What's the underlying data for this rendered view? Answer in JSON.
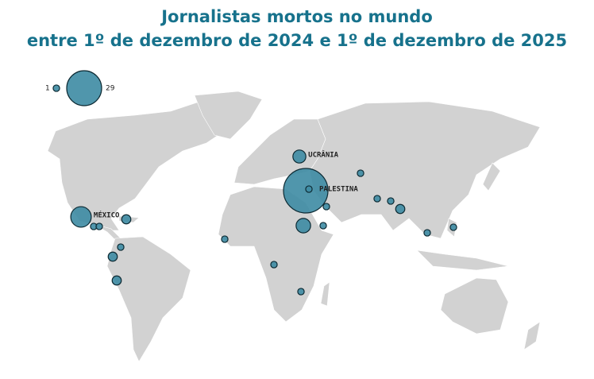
{
  "title": [
    "Jornalistas mortos no mundo",
    "entre 1º de dezembro de 2024 e 1º de dezembro de 2025"
  ],
  "legend": [
    1,
    29
  ],
  "locations": [
    {
      "label": "PALESTINA",
      "value": 47
    },
    {
      "label": null,
      "value": 1
    },
    {
      "label": "MÉXICO",
      "value": 10
    },
    {
      "label": "UCRÂNIA",
      "value": 4
    },
    {
      "label": null,
      "value": 5
    },
    {
      "label": null,
      "value": 1
    },
    {
      "label": null,
      "value": 1
    },
    {
      "label": null,
      "value": 1
    },
    {
      "label": null,
      "value": 1
    },
    {
      "label": null,
      "value": 1
    },
    {
      "label": null,
      "value": 2
    },
    {
      "label": null,
      "value": 1
    },
    {
      "label": null,
      "value": 1
    },
    {
      "label": null,
      "value": 2
    },
    {
      "label": null,
      "value": 1
    },
    {
      "label": null,
      "value": 1
    },
    {
      "label": null,
      "value": 1
    },
    {
      "label": null,
      "value": 2
    },
    {
      "label": null,
      "value": 2
    },
    {
      "label": null,
      "value": 1
    },
    {
      "label": null,
      "value": 1
    },
    {
      "label": null,
      "value": 1
    }
  ]
}
